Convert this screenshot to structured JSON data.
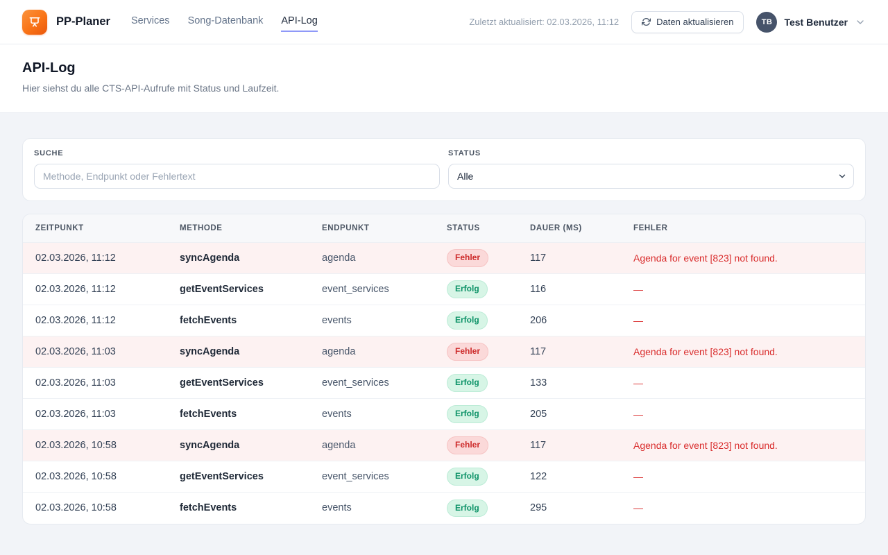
{
  "navbar": {
    "brand": "PP-Planer",
    "nav_items": [
      {
        "label": "Services",
        "active": false
      },
      {
        "label": "Song-Datenbank",
        "active": false
      },
      {
        "label": "API-Log",
        "active": true
      }
    ],
    "last_updated": "Zuletzt aktualisiert: 02.03.2026, 11:12",
    "refresh_button_label": "Daten aktualisieren",
    "user": {
      "initials": "TB",
      "name": "Test Benutzer"
    }
  },
  "page_header": {
    "title": "API-Log",
    "subtitle": "Hier siehst du alle CTS-API-Aufrufe mit Status und Laufzeit."
  },
  "filters": {
    "search_label": "SUCHE",
    "search_placeholder": "Methode, Endpunkt oder Fehlertext",
    "search_value": "",
    "status_label": "STATUS",
    "status_value": "Alle"
  },
  "table": {
    "columns": [
      "ZEITPUNKT",
      "METHODE",
      "ENDPUNKT",
      "STATUS",
      "DAUER (MS)",
      "FEHLER"
    ],
    "status_badges": {
      "error": "Fehler",
      "success": "Erfolg"
    },
    "empty_error_placeholder": "—",
    "rows": [
      {
        "timestamp": "02.03.2026, 11:12",
        "method": "syncAgenda",
        "endpoint": "agenda",
        "status": "Fehler",
        "duration": "117",
        "error": "Agenda for event [823] not found."
      },
      {
        "timestamp": "02.03.2026, 11:12",
        "method": "getEventServices",
        "endpoint": "event_services",
        "status": "Erfolg",
        "duration": "116",
        "error": "—"
      },
      {
        "timestamp": "02.03.2026, 11:12",
        "method": "fetchEvents",
        "endpoint": "events",
        "status": "Erfolg",
        "duration": "206",
        "error": "—"
      },
      {
        "timestamp": "02.03.2026, 11:03",
        "method": "syncAgenda",
        "endpoint": "agenda",
        "status": "Fehler",
        "duration": "117",
        "error": "Agenda for event [823] not found."
      },
      {
        "timestamp": "02.03.2026, 11:03",
        "method": "getEventServices",
        "endpoint": "event_services",
        "status": "Erfolg",
        "duration": "133",
        "error": "—"
      },
      {
        "timestamp": "02.03.2026, 11:03",
        "method": "fetchEvents",
        "endpoint": "events",
        "status": "Erfolg",
        "duration": "205",
        "error": "—"
      },
      {
        "timestamp": "02.03.2026, 10:58",
        "method": "syncAgenda",
        "endpoint": "agenda",
        "status": "Fehler",
        "duration": "117",
        "error": "Agenda for event [823] not found."
      },
      {
        "timestamp": "02.03.2026, 10:58",
        "method": "getEventServices",
        "endpoint": "event_services",
        "status": "Erfolg",
        "duration": "122",
        "error": "—"
      },
      {
        "timestamp": "02.03.2026, 10:58",
        "method": "fetchEvents",
        "endpoint": "events",
        "status": "Erfolg",
        "duration": "295",
        "error": "—"
      }
    ]
  },
  "colors": {
    "brand_orange": "#f97316",
    "active_underline": "#8f99f8",
    "error_text": "#d92c2c",
    "error_row_bg": "#fdf2f2",
    "error_badge_bg": "#fbd9d9",
    "success_badge_bg": "#d7f5e6",
    "success_badge_text": "#0c9267"
  }
}
